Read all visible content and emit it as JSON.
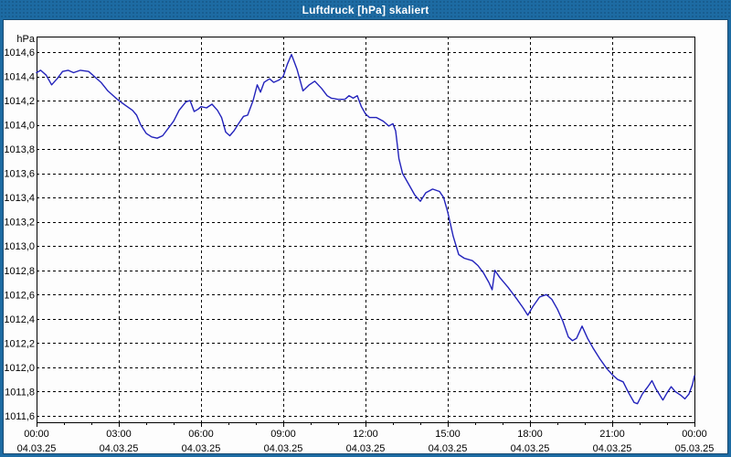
{
  "window": {
    "title": "Luftdruck [hPa] skaliert",
    "titlebar_color": "#1d6ba3",
    "border_dark": "#194a70"
  },
  "chart_data": {
    "type": "line",
    "title": "Luftdruck [hPa] skaliert",
    "ylabel": "hPa",
    "xlabel": "",
    "grid": true,
    "legend": "none",
    "line_color": "#2222bb",
    "grid_color": "#000000",
    "background": "#fdfdfd",
    "xlim": [
      0,
      24
    ],
    "ylim": [
      1011.547,
      1014.728
    ],
    "y_tick_step": 0.2,
    "y_ticks": [
      {
        "value": 1014.6,
        "label": "1014,6"
      },
      {
        "value": 1014.4,
        "label": "1014,4"
      },
      {
        "value": 1014.2,
        "label": "1014,2"
      },
      {
        "value": 1014.0,
        "label": "1014,0"
      },
      {
        "value": 1013.8,
        "label": "1013,8"
      },
      {
        "value": 1013.6,
        "label": "1013,6"
      },
      {
        "value": 1013.4,
        "label": "1013,4"
      },
      {
        "value": 1013.2,
        "label": "1013,2"
      },
      {
        "value": 1013.0,
        "label": "1013,0"
      },
      {
        "value": 1012.8,
        "label": "1012,8"
      },
      {
        "value": 1012.6,
        "label": "1012,6"
      },
      {
        "value": 1012.4,
        "label": "1012,4"
      },
      {
        "value": 1012.2,
        "label": "1012,2"
      },
      {
        "value": 1012.0,
        "label": "1012,0"
      },
      {
        "value": 1011.8,
        "label": "1011,8"
      },
      {
        "value": 1011.6,
        "label": "1011,6"
      }
    ],
    "x_ticks": [
      {
        "t": 0,
        "time": "00:00",
        "date": "04.03.25"
      },
      {
        "t": 3,
        "time": "03:00",
        "date": "04.03.25"
      },
      {
        "t": 6,
        "time": "06:00",
        "date": "04.03.25"
      },
      {
        "t": 9,
        "time": "09:00",
        "date": "04.03.25"
      },
      {
        "t": 12,
        "time": "12:00",
        "date": "04.03.25"
      },
      {
        "t": 15,
        "time": "15:00",
        "date": "04.03.25"
      },
      {
        "t": 18,
        "time": "18:00",
        "date": "04.03.25"
      },
      {
        "t": 21,
        "time": "21:00",
        "date": "04.03.25"
      },
      {
        "t": 24,
        "time": "00:00",
        "date": "05.03.25"
      }
    ],
    "x_minor_tick_every_hours": 1,
    "series": [
      {
        "name": "Luftdruck [hPa]",
        "points": [
          [
            0.0,
            1014.43
          ],
          [
            0.15,
            1014.45
          ],
          [
            0.35,
            1014.41
          ],
          [
            0.55,
            1014.33
          ],
          [
            0.75,
            1014.38
          ],
          [
            0.95,
            1014.44
          ],
          [
            1.15,
            1014.45
          ],
          [
            1.35,
            1014.43
          ],
          [
            1.6,
            1014.45
          ],
          [
            1.9,
            1014.44
          ],
          [
            2.1,
            1014.4
          ],
          [
            2.35,
            1014.35
          ],
          [
            2.6,
            1014.28
          ],
          [
            2.85,
            1014.23
          ],
          [
            3.0,
            1014.2
          ],
          [
            3.25,
            1014.16
          ],
          [
            3.5,
            1014.12
          ],
          [
            3.65,
            1014.08
          ],
          [
            3.8,
            1014.0
          ],
          [
            4.0,
            1013.93
          ],
          [
            4.2,
            1013.9
          ],
          [
            4.4,
            1013.89
          ],
          [
            4.6,
            1013.91
          ],
          [
            4.8,
            1013.97
          ],
          [
            5.0,
            1014.03
          ],
          [
            5.2,
            1014.12
          ],
          [
            5.45,
            1014.19
          ],
          [
            5.6,
            1014.2
          ],
          [
            5.75,
            1014.11
          ],
          [
            5.9,
            1014.13
          ],
          [
            6.0,
            1014.15
          ],
          [
            6.2,
            1014.14
          ],
          [
            6.4,
            1014.17
          ],
          [
            6.6,
            1014.12
          ],
          [
            6.75,
            1014.06
          ],
          [
            6.9,
            1013.94
          ],
          [
            7.05,
            1013.91
          ],
          [
            7.2,
            1013.95
          ],
          [
            7.4,
            1014.02
          ],
          [
            7.55,
            1014.07
          ],
          [
            7.7,
            1014.08
          ],
          [
            7.9,
            1014.2
          ],
          [
            8.05,
            1014.33
          ],
          [
            8.17,
            1014.27
          ],
          [
            8.3,
            1014.35
          ],
          [
            8.5,
            1014.38
          ],
          [
            8.65,
            1014.35
          ],
          [
            8.85,
            1014.37
          ],
          [
            9.0,
            1014.4
          ],
          [
            9.15,
            1014.5
          ],
          [
            9.3,
            1014.58
          ],
          [
            9.5,
            1014.46
          ],
          [
            9.72,
            1014.28
          ],
          [
            9.95,
            1014.33
          ],
          [
            10.15,
            1014.36
          ],
          [
            10.4,
            1014.3
          ],
          [
            10.6,
            1014.24
          ],
          [
            10.75,
            1014.22
          ],
          [
            11.0,
            1014.21
          ],
          [
            11.25,
            1014.21
          ],
          [
            11.4,
            1014.24
          ],
          [
            11.55,
            1014.22
          ],
          [
            11.7,
            1014.24
          ],
          [
            11.85,
            1014.15
          ],
          [
            12.0,
            1014.09
          ],
          [
            12.15,
            1014.06
          ],
          [
            12.4,
            1014.06
          ],
          [
            12.65,
            1014.03
          ],
          [
            12.85,
            1013.99
          ],
          [
            13.0,
            1014.01
          ],
          [
            13.1,
            1013.95
          ],
          [
            13.22,
            1013.72
          ],
          [
            13.35,
            1013.6
          ],
          [
            13.6,
            1013.5
          ],
          [
            13.8,
            1013.42
          ],
          [
            14.0,
            1013.37
          ],
          [
            14.2,
            1013.44
          ],
          [
            14.45,
            1013.47
          ],
          [
            14.7,
            1013.45
          ],
          [
            14.85,
            1013.4
          ],
          [
            15.0,
            1013.28
          ],
          [
            15.2,
            1013.08
          ],
          [
            15.4,
            1012.93
          ],
          [
            15.6,
            1012.9
          ],
          [
            15.9,
            1012.88
          ],
          [
            16.1,
            1012.84
          ],
          [
            16.3,
            1012.78
          ],
          [
            16.5,
            1012.7
          ],
          [
            16.62,
            1012.64
          ],
          [
            16.72,
            1012.8
          ],
          [
            16.9,
            1012.74
          ],
          [
            17.2,
            1012.66
          ],
          [
            17.5,
            1012.57
          ],
          [
            17.75,
            1012.49
          ],
          [
            17.92,
            1012.43
          ],
          [
            18.1,
            1012.5
          ],
          [
            18.35,
            1012.58
          ],
          [
            18.6,
            1012.6
          ],
          [
            18.8,
            1012.56
          ],
          [
            19.0,
            1012.48
          ],
          [
            19.2,
            1012.38
          ],
          [
            19.4,
            1012.25
          ],
          [
            19.55,
            1012.22
          ],
          [
            19.7,
            1012.24
          ],
          [
            19.9,
            1012.34
          ],
          [
            20.1,
            1012.24
          ],
          [
            20.3,
            1012.16
          ],
          [
            20.55,
            1012.07
          ],
          [
            20.8,
            1011.99
          ],
          [
            21.0,
            1011.94
          ],
          [
            21.2,
            1011.9
          ],
          [
            21.4,
            1011.88
          ],
          [
            21.6,
            1011.79
          ],
          [
            21.8,
            1011.71
          ],
          [
            21.92,
            1011.7
          ],
          [
            22.1,
            1011.78
          ],
          [
            22.3,
            1011.84
          ],
          [
            22.45,
            1011.89
          ],
          [
            22.6,
            1011.82
          ],
          [
            22.85,
            1011.73
          ],
          [
            23.0,
            1011.79
          ],
          [
            23.15,
            1011.84
          ],
          [
            23.3,
            1011.8
          ],
          [
            23.5,
            1011.77
          ],
          [
            23.65,
            1011.74
          ],
          [
            23.8,
            1011.78
          ],
          [
            23.93,
            1011.86
          ],
          [
            24.0,
            1011.93
          ]
        ]
      }
    ]
  }
}
